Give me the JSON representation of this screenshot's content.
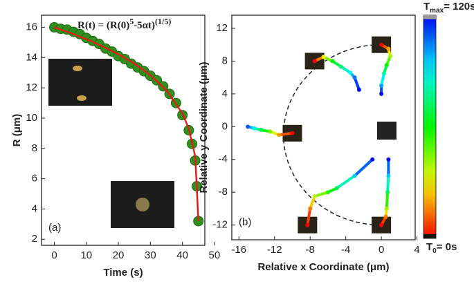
{
  "chart_data": [
    {
      "type": "line",
      "title_parts": [
        "R(t) = (R(0)",
        "5",
        "-5αt)",
        "(1/5)"
      ],
      "panel_label": "(a)",
      "x_label": "Time (s)",
      "y_label": "R (μm)",
      "xlim": [
        -4,
        47
      ],
      "ylim": [
        1.6,
        16.8
      ],
      "xticks": [
        0,
        10,
        20,
        30,
        40,
        50
      ],
      "yticks": [
        2,
        4,
        6,
        8,
        10,
        12,
        14,
        16
      ],
      "series": [
        {
          "color": "#2f8f1f",
          "marker": "circle",
          "x": [
            0,
            2,
            4,
            6,
            8,
            10,
            12,
            14,
            16,
            18,
            20,
            22,
            24,
            26,
            28,
            30,
            32,
            34,
            36,
            38,
            40,
            42,
            43,
            44,
            44.5,
            45
          ],
          "values": [
            16.0,
            15.9,
            15.85,
            15.7,
            15.55,
            15.3,
            15.1,
            14.9,
            14.6,
            14.4,
            14.1,
            13.9,
            13.6,
            13.35,
            13.1,
            12.8,
            12.5,
            12.1,
            11.6,
            11.0,
            10.2,
            9.2,
            8.3,
            7.2,
            5.5,
            3.2
          ]
        },
        {
          "color": "#e0201a",
          "marker": "none",
          "x": [
            0,
            5,
            10,
            15,
            20,
            25,
            30,
            35,
            40,
            42,
            44,
            45
          ],
          "values": [
            16.0,
            15.63,
            15.22,
            14.75,
            14.22,
            13.6,
            12.84,
            11.84,
            10.31,
            9.31,
            7.47,
            3.2
          ]
        }
      ]
    },
    {
      "type": "trajectory",
      "panel_label": "(b)",
      "x_label": "Relative x Coordinate (μm)",
      "y_label": "Relative y Coordinate (μm)",
      "xlim": [
        -16.8,
        3.8
      ],
      "ylim": [
        -13.8,
        13.6
      ],
      "xticks": [
        -16,
        -12,
        -8,
        -4,
        0,
        4
      ],
      "yticks": [
        -12,
        -8,
        -4,
        0,
        4,
        8,
        12
      ],
      "clim": [
        0,
        120
      ],
      "colorbar_max_parts": [
        "T",
        "max",
        "= 120s"
      ],
      "colorbar_min_parts": [
        "T",
        "0",
        "= 0s"
      ],
      "circle": {
        "center": [
          0,
          -1
        ],
        "radius": 11
      },
      "tracks": [
        {
          "x": [
            -10,
            -11.5,
            -12.5,
            -13.5,
            -14.3,
            -15
          ],
          "y": [
            -0.8,
            -1,
            -0.6,
            -0.4,
            -0.2,
            0
          ],
          "t": [
            0,
            20,
            45,
            70,
            90,
            110
          ]
        },
        {
          "x": [
            -7.5,
            -6.5,
            -5.5,
            -4.5,
            -3.5,
            -3,
            -2.5
          ],
          "y": [
            8,
            8.5,
            8,
            7.3,
            6.6,
            6,
            4.5
          ],
          "t": [
            0,
            30,
            60,
            75,
            90,
            105,
            120
          ]
        },
        {
          "x": [
            0,
            0.8,
            1,
            0.6,
            0.3,
            0,
            0
          ],
          "y": [
            10,
            9.5,
            8.6,
            7.5,
            6.5,
            5,
            4
          ],
          "t": [
            0,
            20,
            40,
            60,
            80,
            100,
            120
          ]
        },
        {
          "x": [
            -8.3,
            -8,
            -7.5,
            -6,
            -5,
            -3,
            -1
          ],
          "y": [
            -12,
            -10,
            -8.5,
            -8,
            -7.5,
            -6,
            -4
          ],
          "t": [
            0,
            15,
            35,
            55,
            70,
            95,
            120
          ]
        },
        {
          "x": [
            0,
            0.5,
            0.6,
            0.7,
            0.8,
            0.8
          ],
          "y": [
            -12,
            -11,
            -10,
            -8,
            -6,
            -4
          ],
          "t": [
            0,
            15,
            40,
            70,
            95,
            120
          ]
        }
      ]
    }
  ]
}
